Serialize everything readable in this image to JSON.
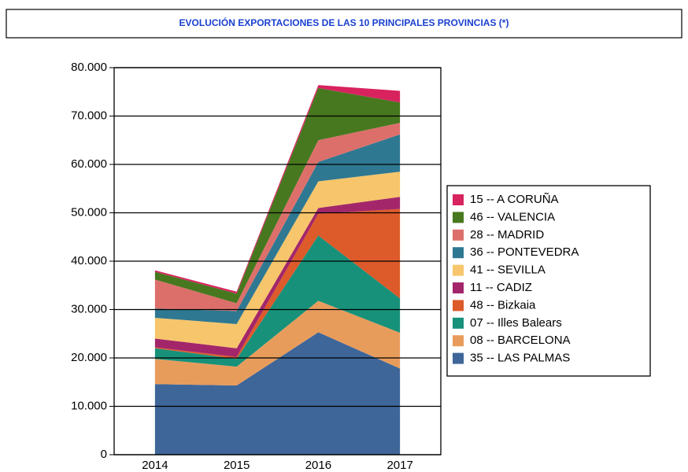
{
  "chart_data": {
    "type": "stacked_area",
    "title": "EVOLUCIÓN EXPORTACIONES DE LAS 10 PRINCIPALES PROVINCIAS (*)",
    "categories": [
      "2014",
      "2015",
      "2016",
      "2017"
    ],
    "series": [
      {
        "name": "35 -- LAS PALMAS",
        "color": "#3e6699",
        "values": [
          14600,
          14300,
          25300,
          17800
        ]
      },
      {
        "name": "08 -- BARCELONA",
        "color": "#e89c5c",
        "values": [
          5200,
          3900,
          6500,
          7400
        ]
      },
      {
        "name": "07 -- Illes Balears",
        "color": "#17917a",
        "values": [
          2200,
          1600,
          13500,
          7100
        ]
      },
      {
        "name": "48 -- Bizkaia",
        "color": "#dd5a2a",
        "values": [
          200,
          400,
          4500,
          18500
        ]
      },
      {
        "name": "11 -- CADIZ",
        "color": "#a3266a",
        "values": [
          1800,
          1800,
          1200,
          2500
        ]
      },
      {
        "name": "41 -- SEVILLA",
        "color": "#f7c56b",
        "values": [
          4300,
          5000,
          5500,
          5200
        ]
      },
      {
        "name": "36 -- PONTEVEDRA",
        "color": "#2f7891",
        "values": [
          1900,
          2700,
          4000,
          7700
        ]
      },
      {
        "name": "28 -- MADRID",
        "color": "#dd6f6b",
        "values": [
          6000,
          1600,
          4500,
          2400
        ]
      },
      {
        "name": "46 -- VALENCIA",
        "color": "#47781f",
        "values": [
          1600,
          2000,
          10800,
          4200
        ]
      },
      {
        "name": "15 -- A CORUÑA",
        "color": "#d8235e",
        "values": [
          300,
          400,
          600,
          2400
        ]
      }
    ],
    "ylim": [
      0,
      80000
    ],
    "yticks": [
      0,
      {
        "value": 10000,
        "label": "10.000"
      },
      {
        "value": 20000,
        "label": "20.000"
      },
      {
        "value": 30000,
        "label": "30.000"
      },
      {
        "value": 40000,
        "label": "40.000"
      },
      {
        "value": 50000,
        "label": "50.000"
      },
      {
        "value": 60000,
        "label": "60.000"
      },
      {
        "value": 70000,
        "label": "70.000"
      },
      {
        "value": 80000,
        "label": "80.000"
      }
    ],
    "grid": true,
    "legend": "right"
  }
}
